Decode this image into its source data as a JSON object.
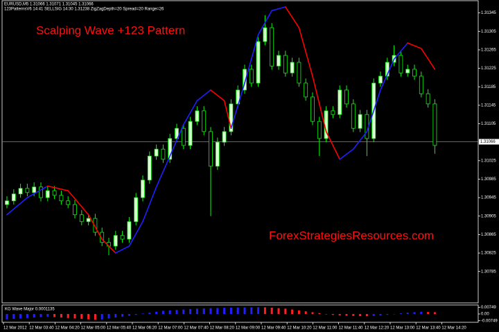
{
  "chart_data": {
    "type": "candlestick",
    "header_lines": [
      "EURUSD,M5  1.31066  1.31071  1.31045  1.31066",
      "123PatternsV6  14:41  SELLSIG  14:30  1.31238  ZigZagDepth=20  Spread=20  Range=26"
    ],
    "title": "Scalping Wave +123 Pattern",
    "watermark": "ForexStrategiesResources.com",
    "candle_color": "#00ff00",
    "bull_fill": "#d8ffd0",
    "bear_fill": "#000000",
    "open": [
      1.3093,
      1.30938,
      1.30953,
      1.30965,
      1.30956,
      1.30968,
      1.30945,
      1.3096,
      1.3095,
      1.30938,
      1.3093,
      1.30908,
      1.30893,
      1.309,
      1.3087,
      1.30848,
      1.3084,
      1.30863,
      1.30855,
      1.30893,
      1.30945,
      1.30983,
      1.31035,
      1.3105,
      1.31028,
      1.31073,
      1.31095,
      1.31058,
      1.3111,
      1.31133,
      1.31088,
      1.31013,
      1.31065,
      1.31088,
      1.31148,
      1.31178,
      1.31223,
      1.31193,
      1.31283,
      1.31313,
      1.3123,
      1.31253,
      1.31215,
      1.31238,
      1.31193,
      1.31163,
      1.3111,
      1.31073,
      1.31133,
      1.31125,
      1.31178,
      1.31148,
      1.31095,
      1.31125,
      1.31073,
      1.31193,
      1.31208,
      1.31238,
      1.31253,
      1.31215,
      1.31223,
      1.31208,
      1.3117,
      1.31148
    ],
    "high": [
      1.30948,
      1.30963,
      1.30975,
      1.30975,
      1.30978,
      1.30978,
      1.3097,
      1.3097,
      1.3096,
      1.30948,
      1.3094,
      1.30918,
      1.3091,
      1.3091,
      1.3088,
      1.30858,
      1.30873,
      1.30873,
      1.30903,
      1.30955,
      1.30993,
      1.31045,
      1.3106,
      1.3106,
      1.31083,
      1.31105,
      1.31105,
      1.3112,
      1.31143,
      1.31143,
      1.31098,
      1.31075,
      1.31098,
      1.31158,
      1.31188,
      1.31233,
      1.31233,
      1.31293,
      1.3134,
      1.31323,
      1.31263,
      1.31263,
      1.31248,
      1.31248,
      1.31203,
      1.31173,
      1.3112,
      1.31143,
      1.31143,
      1.31188,
      1.31188,
      1.31158,
      1.31135,
      1.31135,
      1.31203,
      1.31218,
      1.31248,
      1.31275,
      1.31263,
      1.31233,
      1.31233,
      1.31218,
      1.3118,
      1.31158
    ],
    "low": [
      1.30922,
      1.3093,
      1.30945,
      1.30948,
      1.30948,
      1.30937,
      1.30937,
      1.30942,
      1.3093,
      1.30922,
      1.309,
      1.30885,
      1.30885,
      1.30862,
      1.3084,
      1.3082,
      1.30832,
      1.30847,
      1.30847,
      1.30885,
      1.30937,
      1.30975,
      1.31027,
      1.3102,
      1.3102,
      1.31065,
      1.3105,
      1.3105,
      1.31102,
      1.3108,
      1.30905,
      1.31005,
      1.31057,
      1.3108,
      1.3114,
      1.3117,
      1.31185,
      1.31185,
      1.31275,
      1.31222,
      1.31222,
      1.31207,
      1.31207,
      1.31185,
      1.31155,
      1.31102,
      1.31035,
      1.31065,
      1.31117,
      1.31117,
      1.3114,
      1.31087,
      1.31087,
      1.31035,
      1.31065,
      1.31185,
      1.312,
      1.3123,
      1.31207,
      1.31207,
      1.312,
      1.31162,
      1.3114,
      1.3104
    ],
    "close": [
      1.30938,
      1.30953,
      1.30965,
      1.30956,
      1.30968,
      1.30945,
      1.3096,
      1.3095,
      1.30938,
      1.3093,
      1.30908,
      1.30893,
      1.309,
      1.3087,
      1.30848,
      1.3084,
      1.30863,
      1.30855,
      1.30893,
      1.30945,
      1.30983,
      1.31035,
      1.3105,
      1.31028,
      1.31073,
      1.31095,
      1.31058,
      1.3111,
      1.31133,
      1.31088,
      1.31013,
      1.31065,
      1.31088,
      1.31148,
      1.31178,
      1.31223,
      1.31193,
      1.31283,
      1.31313,
      1.3123,
      1.31253,
      1.31215,
      1.31238,
      1.31193,
      1.31163,
      1.3111,
      1.31073,
      1.31133,
      1.31125,
      1.31178,
      1.31148,
      1.31095,
      1.31125,
      1.31073,
      1.31193,
      1.31208,
      1.31238,
      1.31253,
      1.31215,
      1.31223,
      1.31208,
      1.3117,
      1.31148,
      1.31058
    ],
    "ylim": [
      1.30717,
      1.31373
    ],
    "yticks": [
      1.31345,
      1.31305,
      1.31265,
      1.31225,
      1.31185,
      1.31145,
      1.31105,
      1.31025,
      1.30985,
      1.30945,
      1.30905,
      1.30865,
      1.30825,
      1.30785
    ],
    "last_price": 1.31066,
    "wave": {
      "x": [
        0,
        3,
        6,
        9,
        12,
        14,
        16,
        18,
        20,
        22,
        24,
        26,
        28,
        30,
        32,
        33,
        35,
        37,
        39,
        41,
        43,
        45,
        47,
        49,
        51,
        53,
        55,
        57,
        59,
        61,
        63
      ],
      "values": [
        1.30908,
        1.30945,
        1.3097,
        1.3096,
        1.30908,
        1.30855,
        1.30825,
        1.3084,
        1.30893,
        1.30968,
        1.31035,
        1.31103,
        1.31155,
        1.31178,
        1.31155,
        1.31095,
        1.31193,
        1.31298,
        1.3135,
        1.31358,
        1.31313,
        1.31208,
        1.31088,
        1.31028,
        1.3105,
        1.31088,
        1.31178,
        1.31245,
        1.3128,
        1.31268,
        1.31223
      ],
      "up_color": "#2020ff",
      "down_color": "#ff0000"
    },
    "categories": [
      "12 Mar 2012",
      "12 Mar 03:40",
      "12 Mar 04:20",
      "12 Mar 05:00",
      "12 Mar 05:40",
      "12 Mar 06:20",
      "12 Mar 07:00",
      "12 Mar 07:40",
      "12 Mar 08:20",
      "12 Mar 09:00",
      "12 Mar 09:40",
      "12 Mar 10:20",
      "12 Mar 11:00",
      "12 Mar 11:40",
      "12 Mar 12:20",
      "12 Mar 13:00",
      "12 Mar 13:40",
      "12 Mar 14:20"
    ],
    "indicator": {
      "title": "KG Wave Major  0.0001135",
      "up_color": "#2020ff",
      "down_color": "#ff2020",
      "ylim": [
        -0.0085,
        0.0085
      ],
      "yticks": [
        0.00749,
        {
          "value": 0,
          "label": "0.00"
        },
        -0.00749
      ],
      "values": [
        -0.006,
        -0.0055,
        -0.005,
        -0.0045,
        -0.004,
        -0.0035,
        -0.003,
        -0.0035,
        -0.004,
        -0.0045,
        -0.005,
        -0.0055,
        -0.006,
        -0.0065,
        -0.006,
        -0.005,
        -0.004,
        -0.003,
        -0.002,
        -0.001,
        0.0005,
        0.0015,
        0.0025,
        0.0035,
        0.004,
        0.0045,
        0.005,
        0.0055,
        0.006,
        0.0062,
        0.0064,
        0.0066,
        0.0068,
        0.007,
        0.0072,
        0.0073,
        0.0074,
        0.0075,
        0.0074,
        0.007,
        0.0065,
        0.006,
        0.005,
        0.004,
        0.003,
        0.002,
        0.001,
        0,
        -0.001,
        -0.0015,
        -0.002,
        -0.0022,
        -0.0024,
        -0.0025,
        -0.0022,
        -0.0015,
        -0.0008,
        0,
        0.0008,
        0.0015,
        0.002,
        0.0025,
        0.0022,
        0.002
      ]
    }
  }
}
